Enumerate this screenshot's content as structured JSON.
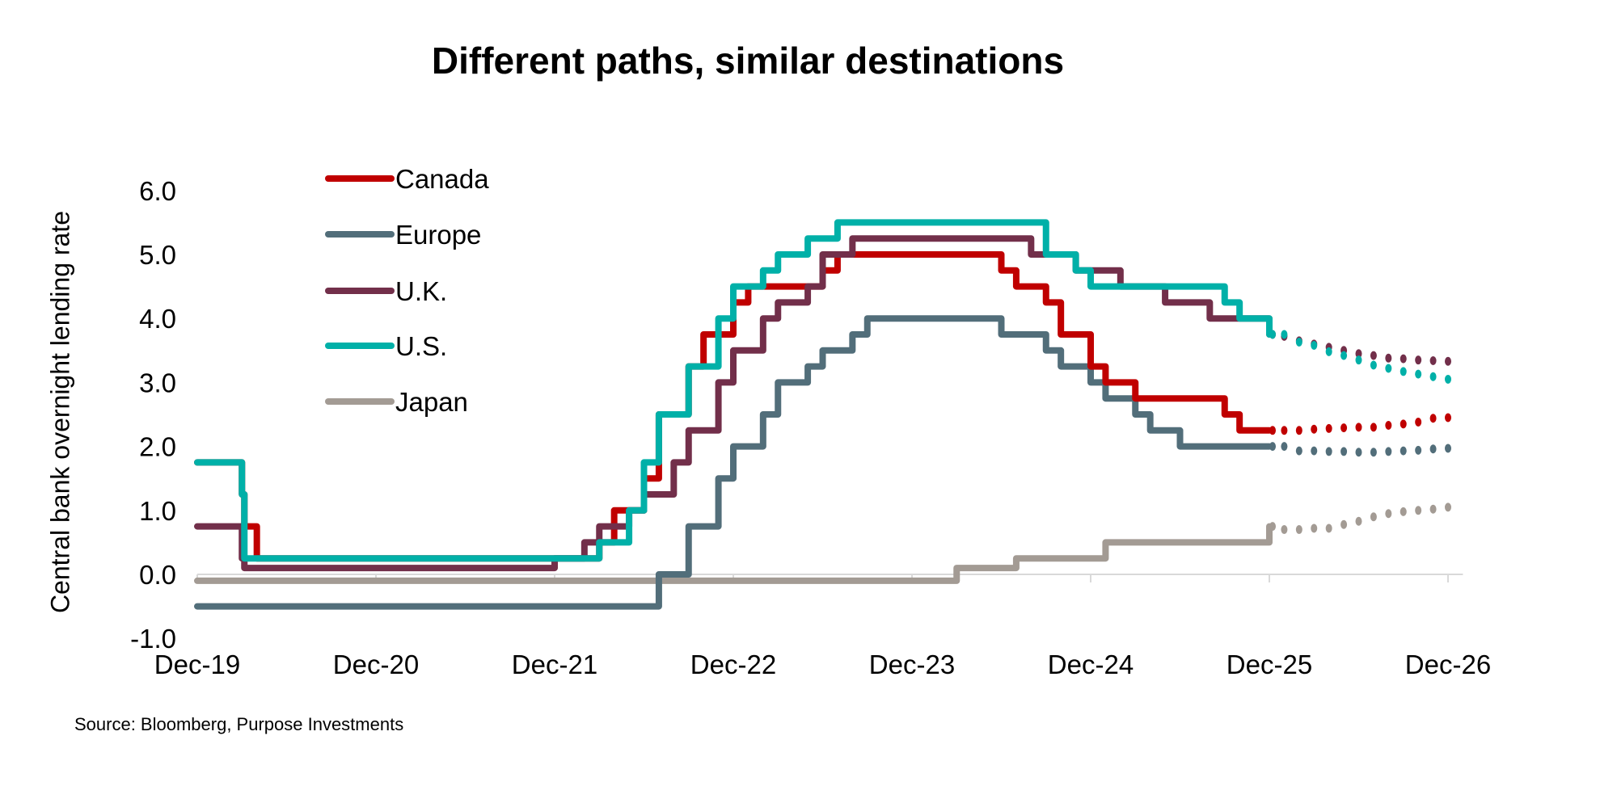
{
  "chart_data": {
    "type": "line",
    "title": "Different paths, similar destinations",
    "ylabel": "Central bank overnight lending rate",
    "xlabel": "",
    "source": "Source: Bloomberg, Purpose Investments",
    "ylim": [
      -1.0,
      6.0
    ],
    "yticks": [
      "6.0",
      "5.0",
      "4.0",
      "3.0",
      "2.0",
      "1.0",
      "0.0",
      "-1.0"
    ],
    "xlim": [
      "2019-12",
      "2027-01"
    ],
    "xticks": [
      {
        "date": "2019-12",
        "label": "Dec-19"
      },
      {
        "date": "2020-12",
        "label": "Dec-20"
      },
      {
        "date": "2021-12",
        "label": "Dec-21"
      },
      {
        "date": "2022-12",
        "label": "Dec-22"
      },
      {
        "date": "2023-12",
        "label": "Dec-23"
      },
      {
        "date": "2024-12",
        "label": "Dec-24"
      },
      {
        "date": "2025-12",
        "label": "Dec-25"
      },
      {
        "date": "2026-12",
        "label": "Dec-26"
      }
    ],
    "grid": false,
    "legend": "top-left",
    "series": [
      {
        "name": "Canada",
        "color": "#C00000",
        "steps": [
          [
            "2019-12",
            1.75
          ],
          [
            "2020-03",
            1.25
          ],
          [
            "2020-03",
            0.75
          ],
          [
            "2020-04",
            0.25
          ],
          [
            "2022-03",
            0.5
          ],
          [
            "2022-04",
            1.0
          ],
          [
            "2022-06",
            1.5
          ],
          [
            "2022-07",
            2.5
          ],
          [
            "2022-09",
            3.25
          ],
          [
            "2022-10",
            3.75
          ],
          [
            "2022-12",
            4.25
          ],
          [
            "2023-01",
            4.5
          ],
          [
            "2023-06",
            4.75
          ],
          [
            "2023-07",
            5.0
          ],
          [
            "2024-06",
            4.75
          ],
          [
            "2024-07",
            4.5
          ],
          [
            "2024-09",
            4.25
          ],
          [
            "2024-10",
            3.75
          ],
          [
            "2024-12",
            3.25
          ],
          [
            "2025-01",
            3.0
          ],
          [
            "2025-03",
            2.75
          ],
          [
            "2025-09",
            2.5
          ],
          [
            "2025-10",
            2.25
          ]
        ],
        "forecast": [
          [
            "2025-12",
            2.25
          ],
          [
            "2026-01",
            2.25
          ],
          [
            "2026-02",
            2.25
          ],
          [
            "2026-03",
            2.27
          ],
          [
            "2026-04",
            2.28
          ],
          [
            "2026-05",
            2.29
          ],
          [
            "2026-06",
            2.3
          ],
          [
            "2026-07",
            2.3
          ],
          [
            "2026-08",
            2.33
          ],
          [
            "2026-09",
            2.35
          ],
          [
            "2026-10",
            2.38
          ],
          [
            "2026-11",
            2.44
          ],
          [
            "2026-12",
            2.45
          ]
        ]
      },
      {
        "name": "Europe",
        "color": "#526E7A",
        "steps": [
          [
            "2019-12",
            -0.5
          ],
          [
            "2022-07",
            0.0
          ],
          [
            "2022-09",
            0.75
          ],
          [
            "2022-11",
            1.5
          ],
          [
            "2022-12",
            2.0
          ],
          [
            "2023-02",
            2.5
          ],
          [
            "2023-03",
            3.0
          ],
          [
            "2023-05",
            3.25
          ],
          [
            "2023-06",
            3.5
          ],
          [
            "2023-08",
            3.75
          ],
          [
            "2023-09",
            4.0
          ],
          [
            "2024-06",
            3.75
          ],
          [
            "2024-09",
            3.5
          ],
          [
            "2024-10",
            3.25
          ],
          [
            "2024-12",
            3.0
          ],
          [
            "2025-01",
            2.75
          ],
          [
            "2025-03",
            2.5
          ],
          [
            "2025-04",
            2.25
          ],
          [
            "2025-06",
            2.0
          ]
        ],
        "forecast": [
          [
            "2025-12",
            2.0
          ],
          [
            "2026-01",
            2.0
          ],
          [
            "2026-02",
            1.93
          ],
          [
            "2026-03",
            1.93
          ],
          [
            "2026-04",
            1.92
          ],
          [
            "2026-05",
            1.92
          ],
          [
            "2026-06",
            1.91
          ],
          [
            "2026-07",
            1.91
          ],
          [
            "2026-08",
            1.92
          ],
          [
            "2026-09",
            1.93
          ],
          [
            "2026-10",
            1.94
          ],
          [
            "2026-11",
            1.96
          ],
          [
            "2026-12",
            1.97
          ]
        ]
      },
      {
        "name": "U.K.",
        "color": "#722F4A",
        "steps": [
          [
            "2019-12",
            0.75
          ],
          [
            "2020-03",
            0.25
          ],
          [
            "2020-03",
            0.1
          ],
          [
            "2021-12",
            0.25
          ],
          [
            "2022-02",
            0.5
          ],
          [
            "2022-03",
            0.75
          ],
          [
            "2022-05",
            1.0
          ],
          [
            "2022-06",
            1.25
          ],
          [
            "2022-08",
            1.75
          ],
          [
            "2022-09",
            2.25
          ],
          [
            "2022-11",
            3.0
          ],
          [
            "2022-12",
            3.5
          ],
          [
            "2023-02",
            4.0
          ],
          [
            "2023-03",
            4.25
          ],
          [
            "2023-05",
            4.5
          ],
          [
            "2023-06",
            5.0
          ],
          [
            "2023-08",
            5.25
          ],
          [
            "2024-08",
            5.0
          ],
          [
            "2024-11",
            4.75
          ],
          [
            "2025-02",
            4.5
          ],
          [
            "2025-05",
            4.25
          ],
          [
            "2025-08",
            4.0
          ],
          [
            "2025-12",
            3.75
          ]
        ],
        "forecast": [
          [
            "2025-12",
            3.75
          ],
          [
            "2026-01",
            3.72
          ],
          [
            "2026-02",
            3.65
          ],
          [
            "2026-03",
            3.6
          ],
          [
            "2026-04",
            3.55
          ],
          [
            "2026-05",
            3.5
          ],
          [
            "2026-06",
            3.45
          ],
          [
            "2026-07",
            3.42
          ],
          [
            "2026-08",
            3.38
          ],
          [
            "2026-09",
            3.37
          ],
          [
            "2026-10",
            3.35
          ],
          [
            "2026-11",
            3.34
          ],
          [
            "2026-12",
            3.33
          ]
        ]
      },
      {
        "name": "U.S.",
        "color": "#00B0A8",
        "steps": [
          [
            "2019-12",
            1.75
          ],
          [
            "2020-03",
            1.25
          ],
          [
            "2020-03",
            0.25
          ],
          [
            "2022-03",
            0.5
          ],
          [
            "2022-05",
            1.0
          ],
          [
            "2022-06",
            1.75
          ],
          [
            "2022-07",
            2.5
          ],
          [
            "2022-09",
            3.25
          ],
          [
            "2022-11",
            4.0
          ],
          [
            "2022-12",
            4.5
          ],
          [
            "2023-02",
            4.75
          ],
          [
            "2023-03",
            5.0
          ],
          [
            "2023-05",
            5.25
          ],
          [
            "2023-07",
            5.5
          ],
          [
            "2024-09",
            5.0
          ],
          [
            "2024-11",
            4.75
          ],
          [
            "2024-12",
            4.5
          ],
          [
            "2025-09",
            4.25
          ],
          [
            "2025-10",
            4.0
          ],
          [
            "2025-12",
            3.75
          ]
        ],
        "forecast": [
          [
            "2025-12",
            3.75
          ],
          [
            "2026-01",
            3.75
          ],
          [
            "2026-02",
            3.63
          ],
          [
            "2026-03",
            3.58
          ],
          [
            "2026-04",
            3.48
          ],
          [
            "2026-05",
            3.42
          ],
          [
            "2026-06",
            3.35
          ],
          [
            "2026-07",
            3.27
          ],
          [
            "2026-08",
            3.22
          ],
          [
            "2026-09",
            3.17
          ],
          [
            "2026-10",
            3.13
          ],
          [
            "2026-11",
            3.09
          ],
          [
            "2026-12",
            3.05
          ]
        ]
      },
      {
        "name": "Japan",
        "color": "#A39B94",
        "steps": [
          [
            "2019-12",
            -0.1
          ],
          [
            "2024-03",
            0.1
          ],
          [
            "2024-07",
            0.25
          ],
          [
            "2025-01",
            0.5
          ],
          [
            "2025-12",
            0.75
          ]
        ],
        "forecast": [
          [
            "2025-12",
            0.75
          ],
          [
            "2026-01",
            0.7
          ],
          [
            "2026-02",
            0.7
          ],
          [
            "2026-03",
            0.72
          ],
          [
            "2026-04",
            0.72
          ],
          [
            "2026-05",
            0.78
          ],
          [
            "2026-06",
            0.83
          ],
          [
            "2026-07",
            0.9
          ],
          [
            "2026-08",
            0.95
          ],
          [
            "2026-09",
            0.98
          ],
          [
            "2026-10",
            1.0
          ],
          [
            "2026-11",
            1.02
          ],
          [
            "2026-12",
            1.05
          ]
        ]
      }
    ]
  }
}
